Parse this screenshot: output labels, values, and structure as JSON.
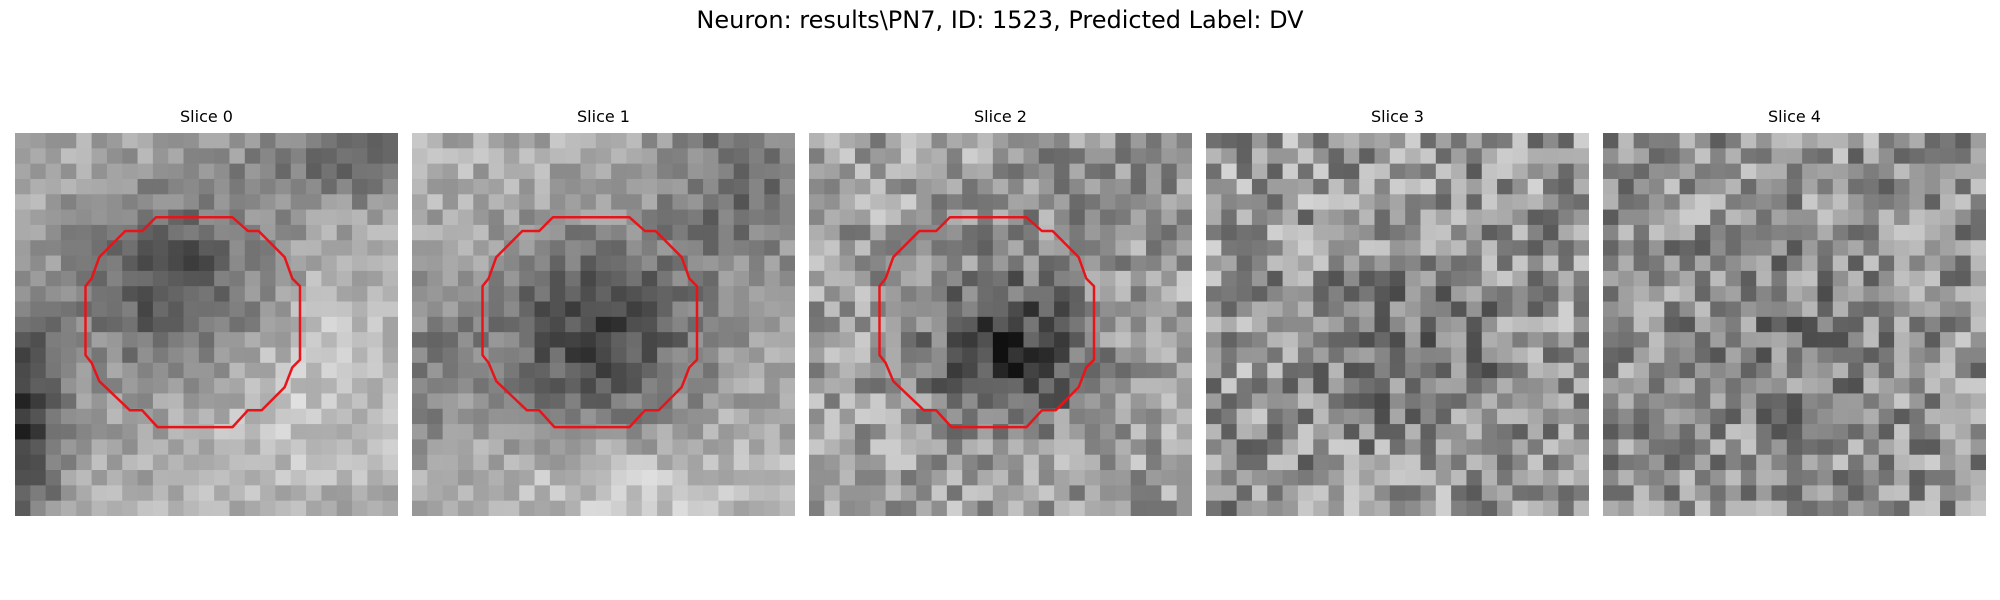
{
  "figure": {
    "title": "Neuron: results\\PN7, ID: 1523, Predicted Label: DV"
  },
  "panels": [
    {
      "title": "Slice 0",
      "has_contour": true
    },
    {
      "title": "Slice 1",
      "has_contour": true
    },
    {
      "title": "Slice 2",
      "has_contour": true
    },
    {
      "title": "Slice 3",
      "has_contour": false
    },
    {
      "title": "Slice 4",
      "has_contour": false
    }
  ],
  "colors": {
    "contour": "#e8141a",
    "background": "#ffffff"
  },
  "image": {
    "colormap": "grayscale",
    "grid_cells": 25
  }
}
